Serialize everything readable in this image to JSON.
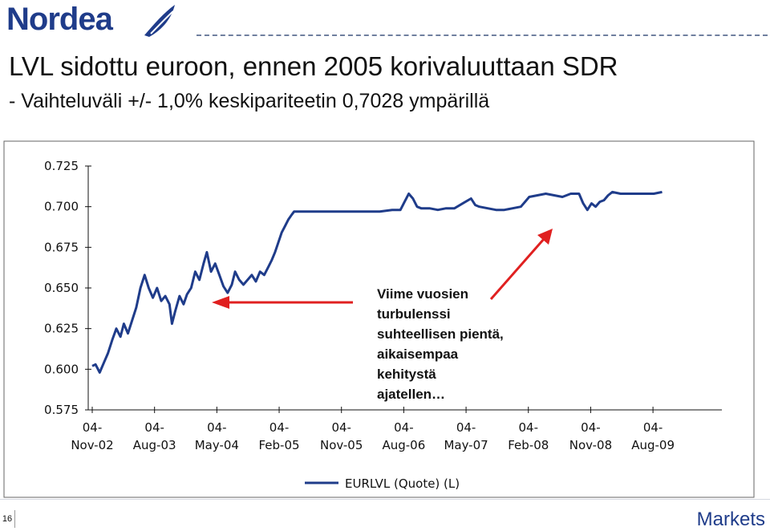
{
  "header": {
    "logo_text": "Nordea",
    "brand_color": "#1f3c8a"
  },
  "slide": {
    "title": "LVL sidottu euroon, ennen 2005 korivaluuttaan SDR",
    "subtitle": "- Vaihteluväli +/- 1,0% keskipariteetin 0,7028 ympärillä",
    "page_number": "16",
    "footer_brand": "Markets"
  },
  "chart_data": {
    "type": "line",
    "title": "",
    "xlabel": "",
    "ylabel": "",
    "ylim": [
      0.575,
      0.725
    ],
    "y_ticks": [
      "0.725",
      "0.700",
      "0.675",
      "0.650",
      "0.625",
      "0.600",
      "0.575"
    ],
    "x_tick_labels": [
      [
        "04-",
        "Nov-02"
      ],
      [
        "04-",
        "Aug-03"
      ],
      [
        "04-",
        "May-04"
      ],
      [
        "04-",
        "Feb-05"
      ],
      [
        "04-",
        "Nov-05"
      ],
      [
        "04-",
        "Aug-06"
      ],
      [
        "04-",
        "May-07"
      ],
      [
        "04-",
        "Feb-08"
      ],
      [
        "04-",
        "Nov-08"
      ],
      [
        "04-",
        "Aug-09"
      ]
    ],
    "x_tick_values": [
      2002.84,
      2003.59,
      2004.34,
      2005.09,
      2005.84,
      2006.59,
      2007.34,
      2008.09,
      2008.84,
      2009.59
    ],
    "x_range": [
      2002.84,
      2010.4
    ],
    "grid": false,
    "legend_position": "bottom",
    "series_color": "#1f3c8a",
    "series": [
      {
        "name": "EURLVL (Quote) (L)",
        "points": [
          [
            2002.84,
            0.602
          ],
          [
            2002.88,
            0.603
          ],
          [
            2002.93,
            0.598
          ],
          [
            2002.98,
            0.604
          ],
          [
            2003.03,
            0.61
          ],
          [
            2003.08,
            0.618
          ],
          [
            2003.13,
            0.625
          ],
          [
            2003.18,
            0.62
          ],
          [
            2003.22,
            0.628
          ],
          [
            2003.27,
            0.622
          ],
          [
            2003.32,
            0.63
          ],
          [
            2003.37,
            0.638
          ],
          [
            2003.42,
            0.65
          ],
          [
            2003.47,
            0.658
          ],
          [
            2003.52,
            0.65
          ],
          [
            2003.57,
            0.644
          ],
          [
            2003.62,
            0.65
          ],
          [
            2003.67,
            0.642
          ],
          [
            2003.72,
            0.645
          ],
          [
            2003.77,
            0.64
          ],
          [
            2003.8,
            0.628
          ],
          [
            2003.84,
            0.636
          ],
          [
            2003.89,
            0.645
          ],
          [
            2003.94,
            0.64
          ],
          [
            2003.98,
            0.646
          ],
          [
            2004.03,
            0.65
          ],
          [
            2004.08,
            0.66
          ],
          [
            2004.13,
            0.655
          ],
          [
            2004.18,
            0.665
          ],
          [
            2004.22,
            0.672
          ],
          [
            2004.27,
            0.66
          ],
          [
            2004.32,
            0.665
          ],
          [
            2004.37,
            0.658
          ],
          [
            2004.42,
            0.651
          ],
          [
            2004.47,
            0.647
          ],
          [
            2004.52,
            0.652
          ],
          [
            2004.56,
            0.66
          ],
          [
            2004.61,
            0.655
          ],
          [
            2004.66,
            0.652
          ],
          [
            2004.71,
            0.655
          ],
          [
            2004.76,
            0.658
          ],
          [
            2004.81,
            0.654
          ],
          [
            2004.86,
            0.66
          ],
          [
            2004.91,
            0.658
          ],
          [
            2004.96,
            0.663
          ],
          [
            2005.0,
            0.667
          ],
          [
            2005.04,
            0.672
          ],
          [
            2005.08,
            0.678
          ],
          [
            2005.12,
            0.684
          ],
          [
            2005.16,
            0.688
          ],
          [
            2005.2,
            0.692
          ],
          [
            2005.24,
            0.695
          ],
          [
            2005.27,
            0.697
          ],
          [
            2005.32,
            0.697
          ],
          [
            2005.5,
            0.697
          ],
          [
            2005.75,
            0.697
          ],
          [
            2005.9,
            0.697
          ],
          [
            2006.1,
            0.697
          ],
          [
            2006.3,
            0.697
          ],
          [
            2006.45,
            0.698
          ],
          [
            2006.55,
            0.698
          ],
          [
            2006.6,
            0.703
          ],
          [
            2006.65,
            0.708
          ],
          [
            2006.7,
            0.705
          ],
          [
            2006.75,
            0.7
          ],
          [
            2006.8,
            0.699
          ],
          [
            2006.9,
            0.699
          ],
          [
            2007.0,
            0.698
          ],
          [
            2007.1,
            0.699
          ],
          [
            2007.2,
            0.699
          ],
          [
            2007.3,
            0.702
          ],
          [
            2007.4,
            0.705
          ],
          [
            2007.45,
            0.701
          ],
          [
            2007.5,
            0.7
          ],
          [
            2007.6,
            0.699
          ],
          [
            2007.7,
            0.698
          ],
          [
            2007.8,
            0.698
          ],
          [
            2007.9,
            0.699
          ],
          [
            2008.0,
            0.7
          ],
          [
            2008.05,
            0.703
          ],
          [
            2008.1,
            0.706
          ],
          [
            2008.2,
            0.707
          ],
          [
            2008.3,
            0.708
          ],
          [
            2008.4,
            0.707
          ],
          [
            2008.5,
            0.706
          ],
          [
            2008.6,
            0.708
          ],
          [
            2008.7,
            0.708
          ],
          [
            2008.75,
            0.702
          ],
          [
            2008.8,
            0.698
          ],
          [
            2008.85,
            0.702
          ],
          [
            2008.9,
            0.7
          ],
          [
            2008.95,
            0.703
          ],
          [
            2009.0,
            0.704
          ],
          [
            2009.05,
            0.707
          ],
          [
            2009.1,
            0.709
          ],
          [
            2009.2,
            0.708
          ],
          [
            2009.3,
            0.708
          ],
          [
            2009.4,
            0.708
          ],
          [
            2009.5,
            0.708
          ],
          [
            2009.6,
            0.708
          ],
          [
            2009.7,
            0.709
          ]
        ]
      }
    ],
    "annotation": {
      "lines": [
        "Viime vuosien",
        "turbulenssi",
        "suhteellisen pientä,",
        "aikaisempaa",
        "kehitystä",
        "ajatellen…"
      ]
    },
    "arrow_color": "#e02020"
  }
}
